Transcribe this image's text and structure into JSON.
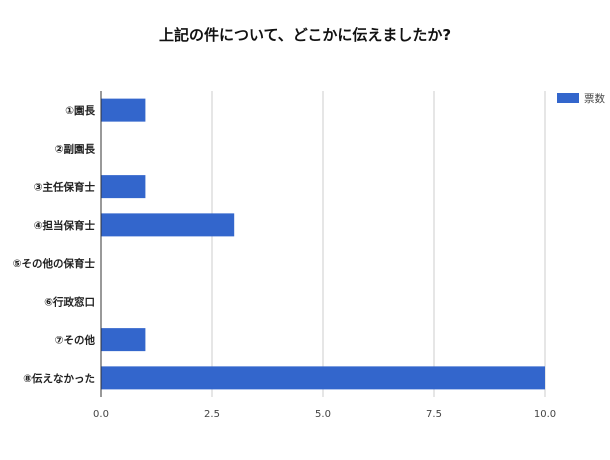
{
  "chart_data": {
    "type": "bar",
    "orientation": "horizontal",
    "title": "上記の件について、どこかに伝えましたか?",
    "categories": [
      "①園長",
      "②副園長",
      "③主任保育士",
      "④担当保育士",
      "⑤その他の保育士",
      "⑥行政窓口",
      "⑦その他",
      "⑧伝えなかった"
    ],
    "series": [
      {
        "name": "票数",
        "values": [
          1,
          0,
          1,
          3,
          0,
          0,
          1,
          10
        ],
        "color": "#3366cc"
      }
    ],
    "xlabel": "",
    "ylabel": "",
    "xlim": [
      0,
      10
    ],
    "xticks": [
      "0.0",
      "2.5",
      "5.0",
      "7.5",
      "10.0"
    ],
    "xtick_values": [
      0,
      2.5,
      5,
      7.5,
      10
    ],
    "grid": true,
    "legend_position": "top-right"
  }
}
